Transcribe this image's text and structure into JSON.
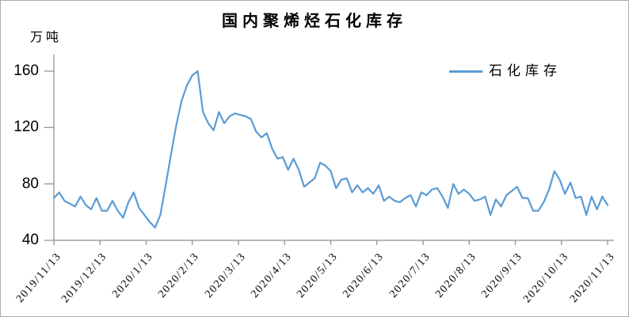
{
  "chart_data": {
    "type": "line",
    "title": "国内聚烯烃石化库存",
    "y_axis_unit_label": "万吨",
    "ylim": [
      40,
      160
    ],
    "yticks": [
      40,
      80,
      120,
      160
    ],
    "x_tick_labels": [
      "2019/11/13",
      "2019/12/13",
      "2020/1/13",
      "2020/2/13",
      "2020/3/13",
      "2020/4/13",
      "2020/5/13",
      "2020/6/13",
      "2020/7/13",
      "2020/8/13",
      "2020/9/13",
      "2020/10/13",
      "2020/11/13"
    ],
    "x_span": [
      "2019/11/13",
      "2020/11/13"
    ],
    "grid": false,
    "legend": {
      "position": "upper-right-inside",
      "entries": [
        "石化库存"
      ]
    },
    "axis_color": "#8C8C8C",
    "text_color": "#000000",
    "series": [
      {
        "name": "石化库存",
        "color": "#5B9BD5",
        "values": [
          70,
          74,
          68,
          66,
          64,
          71,
          65,
          62,
          70,
          61,
          61,
          68,
          61,
          56,
          67,
          74,
          63,
          58,
          53,
          49,
          58,
          79,
          101,
          122,
          139,
          150,
          157,
          160,
          131,
          123,
          118,
          131,
          123,
          128,
          130,
          129,
          128,
          126,
          117,
          113,
          116,
          105,
          98,
          99,
          90,
          98,
          90,
          78,
          81,
          84,
          95,
          93,
          89,
          77,
          83,
          84,
          74,
          79,
          74,
          77,
          73,
          79,
          68,
          71,
          68,
          67,
          70,
          72,
          64,
          74,
          72,
          76,
          77,
          71,
          63,
          80,
          73,
          76,
          73,
          68,
          69,
          71,
          58,
          69,
          64,
          72,
          75,
          78,
          70,
          70,
          61,
          61,
          67,
          76,
          89,
          83,
          73,
          81,
          70,
          71,
          58,
          71,
          62,
          71,
          65
        ]
      }
    ]
  }
}
